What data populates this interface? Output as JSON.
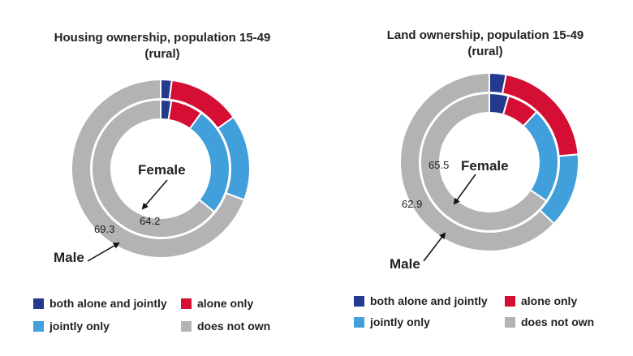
{
  "colors": {
    "both alone and jointly": "#233a8e",
    "alone only": "#d50f34",
    "jointly only": "#419fdb",
    "does not own": "#b3b3b3"
  },
  "chart_data": [
    {
      "type": "donut",
      "title": "Housing ownership, population 15-49",
      "subtitle": "(rural)",
      "categories": [
        "both alone and jointly",
        "alone only",
        "jointly only",
        "does not own"
      ],
      "series": [
        {
          "name": "Male",
          "ring": "outer",
          "values": [
            2.0,
            13.2,
            15.5,
            69.3
          ],
          "label": "69.3"
        },
        {
          "name": "Female",
          "ring": "inner",
          "values": [
            2.5,
            7.5,
            25.8,
            64.2
          ],
          "label": "64.2"
        }
      ],
      "legend": "bottom"
    },
    {
      "type": "donut",
      "title": "Land ownership, population 15-49",
      "subtitle": "(rural)",
      "categories": [
        "both alone and jointly",
        "alone only",
        "jointly only",
        "does not own"
      ],
      "series": [
        {
          "name": "Male",
          "ring": "outer",
          "values": [
            3.0,
            20.6,
            13.5,
            62.9
          ],
          "label": "62.9"
        },
        {
          "name": "Female",
          "ring": "inner",
          "values": [
            4.5,
            7.5,
            22.5,
            65.5
          ],
          "label": "65.5"
        }
      ],
      "legend": "bottom"
    }
  ]
}
